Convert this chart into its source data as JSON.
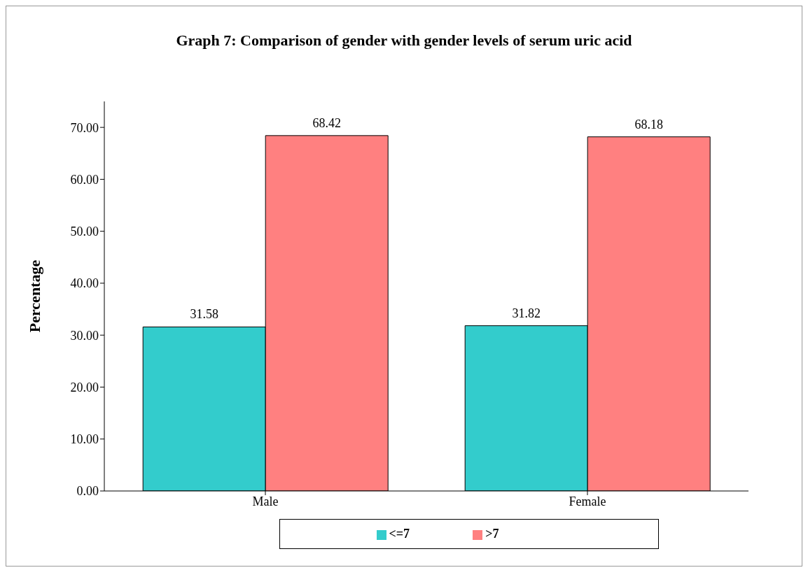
{
  "chart_data": {
    "type": "bar",
    "title": "Graph 7: Comparison of gender with gender levels of serum uric acid",
    "ylabel": "Percentage",
    "categories": [
      "Male",
      "Female"
    ],
    "series": [
      {
        "name": "<=7",
        "color": "#33cccc",
        "values": [
          31.58,
          31.82
        ]
      },
      {
        "name": ">7",
        "color": "#ff8080",
        "values": [
          68.42,
          68.18
        ]
      }
    ],
    "ylim": [
      0,
      75
    ],
    "yticks": [
      {
        "value": 0,
        "label": "0.00"
      },
      {
        "value": 10,
        "label": "10.00"
      },
      {
        "value": 20,
        "label": "20.00"
      },
      {
        "value": 30,
        "label": "30.00"
      },
      {
        "value": 40,
        "label": "40.00"
      },
      {
        "value": 50,
        "label": "50.00"
      },
      {
        "value": 60,
        "label": "60.00"
      },
      {
        "value": 70,
        "label": "70.00"
      }
    ],
    "data_labels": true,
    "grid": false,
    "legend": "bottom"
  }
}
